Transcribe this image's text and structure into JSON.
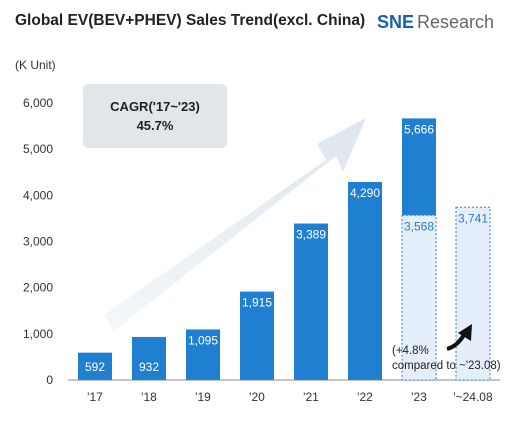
{
  "header": {
    "title": "Global EV(BEV+PHEV) Sales Trend(excl. China)",
    "logo_mark": "SNE",
    "logo_word": "Research"
  },
  "chart_data": {
    "type": "bar",
    "categories": [
      "'17",
      "'18",
      "'19",
      "'20",
      "'21",
      "'22",
      "'23",
      "'~24.08"
    ],
    "series": [
      {
        "values": [
          592,
          932,
          1095,
          1915,
          3389,
          4290,
          5666,
          null
        ]
      },
      {
        "values": [
          null,
          null,
          null,
          null,
          null,
          null,
          3568,
          3741
        ]
      }
    ],
    "data_labels": [
      "592",
      "932",
      "1,095",
      "1,915",
      "3,389",
      "4,290",
      "5,666",
      "3,568",
      "3,741"
    ],
    "yticks": [
      "0",
      "1,000",
      "2,000",
      "3,000",
      "4,000",
      "5,000",
      "6,000"
    ],
    "ylim": [
      0,
      6000
    ],
    "unit_label": "(K Unit)",
    "annotations": {
      "cagr_line1": "CAGR('17~'23)",
      "cagr_line2": "45.7%",
      "growth_line1": "(+4.8%",
      "growth_line2": "compared to ~'23.08)"
    },
    "colors": {
      "bar": "#1f7fd1",
      "bar_light": "#e4effb",
      "bar_border": "#4a90d9",
      "light_label": "#2f7bc4",
      "arrow": "#dde6ef",
      "cagr_box": "#e1e6ea"
    },
    "grid": false
  }
}
